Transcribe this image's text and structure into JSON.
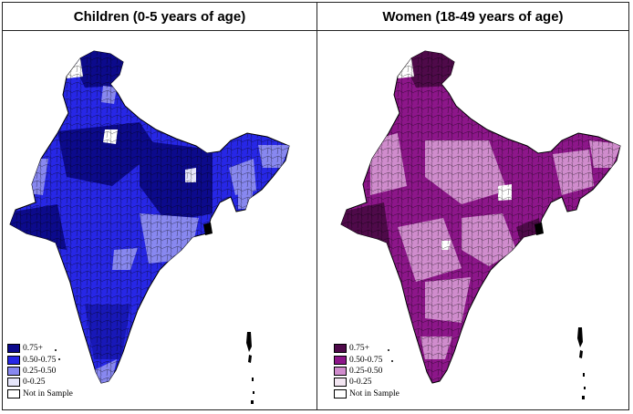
{
  "panels": [
    {
      "title": "Children (0-5 years of age)",
      "legend": [
        {
          "label": "0.75+",
          "color": "#0c0a8c"
        },
        {
          "label": "0.50-0.75",
          "color": "#2727e6"
        },
        {
          "label": "0.25-0.50",
          "color": "#8888f0"
        },
        {
          "label": "0-0.25",
          "color": "#e6e6fb"
        },
        {
          "label": "Not in Sample",
          "color": "#ffffff"
        }
      ]
    },
    {
      "title": "Women (18-49 years of age)",
      "legend": [
        {
          "label": "0.75+",
          "color": "#4f0a4a"
        },
        {
          "label": "0.50-0.75",
          "color": "#8d168a"
        },
        {
          "label": "0.25-0.50",
          "color": "#d08ccd"
        },
        {
          "label": "0-0.25",
          "color": "#f3e6f2"
        },
        {
          "label": "Not in Sample",
          "color": "#ffffff"
        }
      ]
    }
  ]
}
